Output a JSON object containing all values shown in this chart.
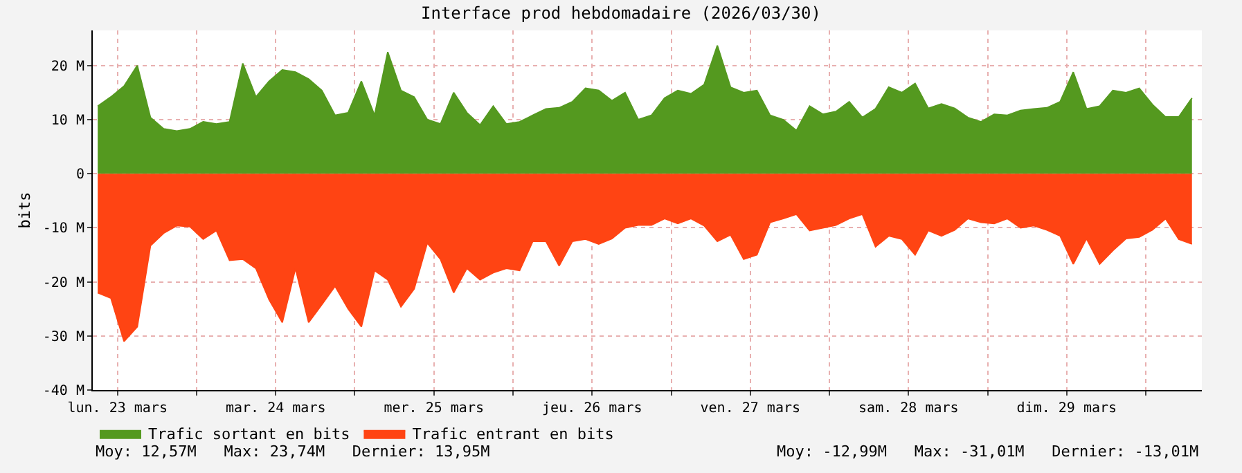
{
  "chart_data": {
    "type": "area",
    "title": "Interface prod hebdomadaire (2026/03/30)",
    "ylabel": "bits",
    "x": [
      "2026-03-23T09:00",
      "2026-03-23T11:00",
      "2026-03-23T13:00",
      "2026-03-23T15:00",
      "2026-03-23T17:00",
      "2026-03-23T19:00",
      "2026-03-23T21:00",
      "2026-03-23T23:00",
      "2026-03-24T01:00",
      "2026-03-24T03:00",
      "2026-03-24T05:00",
      "2026-03-24T07:00",
      "2026-03-24T09:00",
      "2026-03-24T11:00",
      "2026-03-24T13:00",
      "2026-03-24T15:00",
      "2026-03-24T17:00",
      "2026-03-24T19:00",
      "2026-03-24T21:00",
      "2026-03-24T23:00",
      "2026-03-25T01:00",
      "2026-03-25T03:00",
      "2026-03-25T05:00",
      "2026-03-25T07:00",
      "2026-03-25T09:00",
      "2026-03-25T11:00",
      "2026-03-25T13:00",
      "2026-03-25T15:00",
      "2026-03-25T17:00",
      "2026-03-25T19:00",
      "2026-03-25T21:00",
      "2026-03-25T23:00",
      "2026-03-26T01:00",
      "2026-03-26T03:00",
      "2026-03-26T05:00",
      "2026-03-26T07:00",
      "2026-03-26T09:00",
      "2026-03-26T11:00",
      "2026-03-26T13:00",
      "2026-03-26T15:00",
      "2026-03-26T17:00",
      "2026-03-26T19:00",
      "2026-03-26T21:00",
      "2026-03-26T23:00",
      "2026-03-27T01:00",
      "2026-03-27T03:00",
      "2026-03-27T05:00",
      "2026-03-27T07:00",
      "2026-03-27T09:00",
      "2026-03-27T11:00",
      "2026-03-27T13:00",
      "2026-03-27T15:00",
      "2026-03-27T17:00",
      "2026-03-27T19:00",
      "2026-03-27T21:00",
      "2026-03-27T23:00",
      "2026-03-28T01:00",
      "2026-03-28T03:00",
      "2026-03-28T05:00",
      "2026-03-28T07:00",
      "2026-03-28T09:00",
      "2026-03-28T11:00",
      "2026-03-28T13:00",
      "2026-03-28T15:00",
      "2026-03-28T17:00",
      "2026-03-28T19:00",
      "2026-03-28T21:00",
      "2026-03-28T23:00",
      "2026-03-29T01:00",
      "2026-03-29T03:00",
      "2026-03-29T05:00",
      "2026-03-29T07:00",
      "2026-03-29T09:00",
      "2026-03-29T11:00",
      "2026-03-29T13:00",
      "2026-03-29T15:00",
      "2026-03-29T17:00",
      "2026-03-29T19:00",
      "2026-03-29T21:00",
      "2026-03-29T23:00",
      "2026-03-30T01:00",
      "2026-03-30T03:00",
      "2026-03-30T05:00",
      "2026-03-30T07:00"
    ],
    "series": [
      {
        "name": "Trafic sortant en bits",
        "color": "#54991f",
        "values": [
          12.5,
          14.2,
          16.2,
          20,
          10.4,
          8.3,
          7.9,
          8.3,
          9.6,
          9.2,
          9.6,
          20.4,
          14.2,
          17.1,
          19.2,
          18.8,
          17.5,
          15.4,
          10.8,
          11.3,
          17.1,
          10.8,
          22.5,
          15.4,
          14.2,
          10,
          9.2,
          15,
          11.3,
          9,
          12.5,
          9.2,
          9.6,
          10.8,
          12,
          12.2,
          13.3,
          15.8,
          15.4,
          13.5,
          15,
          10,
          10.8,
          14,
          15.4,
          14.8,
          16.5,
          23.7,
          16,
          15,
          15.4,
          10.8,
          10,
          8,
          12.5,
          11,
          11.5,
          13.3,
          10.4,
          12,
          16,
          15,
          16.7,
          12.1,
          12.9,
          12.1,
          10.4,
          9.6,
          11,
          10.8,
          11.7,
          12,
          12.2,
          13.3,
          18.8,
          12,
          12.5,
          15.4,
          15,
          15.8,
          12.8,
          10.5,
          10.5,
          14
        ]
      },
      {
        "name": "Trafic entrant en bits",
        "color": "#ff4413",
        "values": [
          -22,
          -23,
          -31,
          -28.3,
          -13.3,
          -11,
          -9.6,
          -9.8,
          -12.1,
          -10.5,
          -16,
          -15.8,
          -17.5,
          -23.3,
          -27.5,
          -17.5,
          -27.5,
          -24.2,
          -20.8,
          -25,
          -28.3,
          -17.9,
          -19.6,
          -24.6,
          -21.3,
          -12.8,
          -15.8,
          -22,
          -17.5,
          -19.6,
          -18.3,
          -17.5,
          -17.9,
          -12.5,
          -12.5,
          -17,
          -12.5,
          -12.1,
          -13,
          -12,
          -10,
          -9.5,
          -9.5,
          -8.3,
          -9.2,
          -8.3,
          -9.6,
          -12.5,
          -11.3,
          -15.8,
          -15,
          -9,
          -8.3,
          -7.5,
          -10.5,
          -10,
          -9.5,
          -8.3,
          -7.5,
          -13.5,
          -11.5,
          -12.1,
          -15,
          -10.5,
          -11.5,
          -10.4,
          -8.3,
          -9,
          -9.2,
          -8.3,
          -10,
          -9.6,
          -10.4,
          -11.5,
          -16.7,
          -12,
          -16.7,
          -14.2,
          -12,
          -11.7,
          -10.4,
          -8.3,
          -12.1,
          -13
        ]
      }
    ],
    "xlim": [
      "2026-03-23T08:15",
      "2026-03-30T08:30"
    ],
    "xticks": [
      {
        "value": "2026-03-23T12:00",
        "label": "lun. 23 mars"
      },
      {
        "value": "2026-03-24T00:00",
        "label": null
      },
      {
        "value": "2026-03-24T12:00",
        "label": "mar. 24 mars"
      },
      {
        "value": "2026-03-25T00:00",
        "label": null
      },
      {
        "value": "2026-03-25T12:00",
        "label": "mer. 25 mars"
      },
      {
        "value": "2026-03-26T00:00",
        "label": null
      },
      {
        "value": "2026-03-26T12:00",
        "label": "jeu. 26 mars"
      },
      {
        "value": "2026-03-27T00:00",
        "label": null
      },
      {
        "value": "2026-03-27T12:00",
        "label": "ven. 27 mars"
      },
      {
        "value": "2026-03-28T00:00",
        "label": null
      },
      {
        "value": "2026-03-28T12:00",
        "label": "sam. 28 mars"
      },
      {
        "value": "2026-03-29T00:00",
        "label": null
      },
      {
        "value": "2026-03-29T12:00",
        "label": "dim. 29 mars"
      },
      {
        "value": "2026-03-30T00:00",
        "label": null
      }
    ],
    "ylim": [
      -40,
      26.5
    ],
    "yticks": [
      {
        "value": -40,
        "label": "-40 M"
      },
      {
        "value": -30,
        "label": "-30 M"
      },
      {
        "value": -20,
        "label": "-20 M"
      },
      {
        "value": -10,
        "label": "-10 M"
      },
      0,
      {
        "value": 10,
        "label": "10 M"
      },
      {
        "value": 20,
        "label": "20 M"
      }
    ],
    "grid": true,
    "legend": "bottom left",
    "annotations": [
      "Moy: 12,57M   Max: 23,74M   Dernier: 13,95M",
      "Moy: -12,99M   Max: -31,01M   Dernier: -13,01M"
    ]
  }
}
